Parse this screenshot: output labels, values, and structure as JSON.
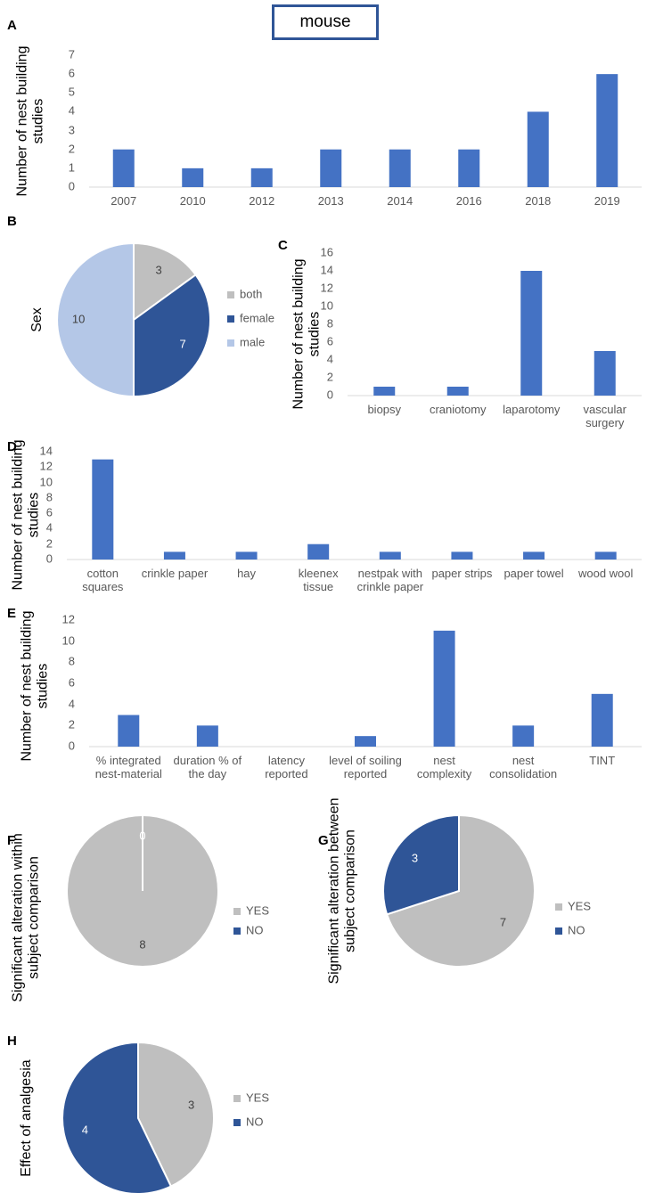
{
  "title": "mouse",
  "chart_data": [
    {
      "type": "bar",
      "panel": "A",
      "ylabel": "Number of  nest building studies",
      "categories": [
        "2007",
        "2010",
        "2012",
        "2013",
        "2014",
        "2016",
        "2018",
        "2019"
      ],
      "values": [
        2,
        1,
        1,
        2,
        2,
        2,
        4,
        6
      ],
      "color": "#4472c4",
      "ylim": [
        0,
        7
      ],
      "yticks": [
        0,
        1,
        2,
        3,
        4,
        5,
        6,
        7
      ]
    },
    {
      "type": "pie",
      "panel": "B",
      "ylabel": "Sex",
      "categories": [
        "both",
        "female",
        "male"
      ],
      "values": [
        3,
        7,
        10
      ],
      "colors": [
        "#bfbfbf",
        "#2f5597",
        "#b4c7e7"
      ],
      "legend": "right"
    },
    {
      "type": "bar",
      "panel": "C",
      "ylabel": "Number of  nest building studies",
      "categories": [
        "biopsy",
        "craniotomy",
        "laparotomy",
        "vascular surgery"
      ],
      "values": [
        1,
        1,
        14,
        5
      ],
      "color": "#4472c4",
      "ylim": [
        0,
        16
      ],
      "yticks": [
        0,
        2,
        4,
        6,
        8,
        10,
        12,
        14,
        16
      ]
    },
    {
      "type": "bar",
      "panel": "D",
      "ylabel": "Number of  nest building studies",
      "categories": [
        "cotton squares",
        "crinkle paper",
        "hay",
        "kleenex tissue",
        "nestpak with crinkle paper",
        "paper strips",
        "paper towel",
        "wood wool"
      ],
      "values": [
        13,
        1,
        1,
        2,
        1,
        1,
        1,
        1
      ],
      "color": "#4472c4",
      "ylim": [
        0,
        14
      ],
      "yticks": [
        0,
        2,
        4,
        6,
        8,
        10,
        12,
        14
      ]
    },
    {
      "type": "bar",
      "panel": "E",
      "ylabel": "Number of  nest building studies",
      "categories": [
        "% integrated nest-material",
        "duration % of the day",
        "latency reported",
        "level of soiling reported",
        "nest complexity",
        "nest consolidation",
        "TINT"
      ],
      "values": [
        3,
        2,
        0,
        1,
        11,
        2,
        5
      ],
      "color": "#4472c4",
      "ylim": [
        0,
        12
      ],
      "yticks": [
        0,
        2,
        4,
        6,
        8,
        10,
        12
      ]
    },
    {
      "type": "pie",
      "panel": "F",
      "ylabel": "Significant alteration within subject comparison",
      "categories": [
        "YES",
        "NO"
      ],
      "values": [
        8,
        0
      ],
      "colors": [
        "#bfbfbf",
        "#2f5597"
      ],
      "legend": "right"
    },
    {
      "type": "pie",
      "panel": "G",
      "ylabel": "Significant alteration between subject comparison",
      "categories": [
        "YES",
        "NO"
      ],
      "values": [
        7,
        3
      ],
      "colors": [
        "#bfbfbf",
        "#2f5597"
      ],
      "legend": "right"
    },
    {
      "type": "pie",
      "panel": "H",
      "ylabel": "Effect of analgesia",
      "categories": [
        "YES",
        "NO"
      ],
      "values": [
        3,
        4
      ],
      "colors": [
        "#bfbfbf",
        "#2f5597"
      ],
      "legend": "right"
    }
  ]
}
